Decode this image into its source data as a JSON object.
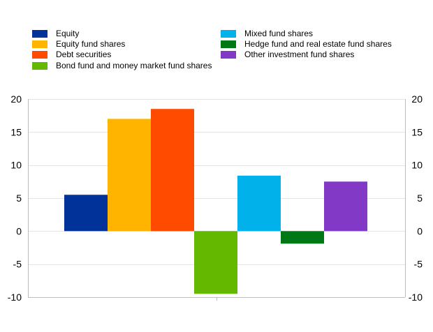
{
  "chart_data": {
    "type": "bar",
    "categories": [
      "Equity",
      "Equity fund shares",
      "Debt securities",
      "Bond fund and money market fund shares",
      "Mixed fund shares",
      "Hedge fund and real estate fund shares",
      "Other investment fund shares"
    ],
    "values": [
      5.5,
      17.0,
      18.5,
      -9.5,
      8.4,
      -1.9,
      7.5
    ],
    "colors": [
      "#003299",
      "#ffb400",
      "#ff4b00",
      "#65b800",
      "#00b1ea",
      "#007816",
      "#8139c6"
    ],
    "title": "",
    "xlabel": "",
    "ylabel": "",
    "ylim": [
      -10,
      20
    ],
    "yticks": [
      20,
      15,
      10,
      5,
      0,
      -5,
      -10
    ],
    "ytick_labels": [
      "20",
      "15",
      "10",
      "5",
      "0",
      "-5",
      "-10"
    ],
    "secondary_axis": true,
    "grid": true,
    "legend_position": "top"
  }
}
